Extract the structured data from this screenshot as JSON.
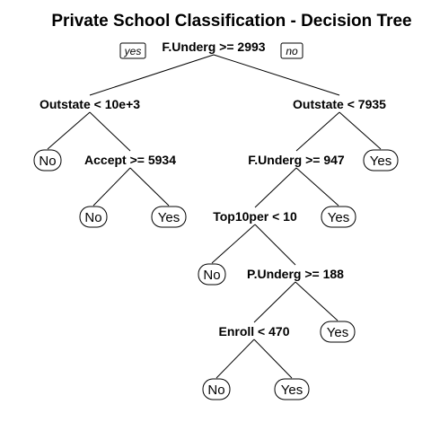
{
  "title": "Private School Classification - Decision Tree",
  "branch_labels": {
    "left": "yes",
    "right": "no"
  },
  "nodes": [
    {
      "id": "n1",
      "type": "split",
      "label": "F.Underg >= 2993"
    },
    {
      "id": "n2",
      "type": "split",
      "label": "Outstate < 10e+3"
    },
    {
      "id": "n3",
      "type": "split",
      "label": "Outstate < 7935"
    },
    {
      "id": "n4",
      "type": "leaf",
      "label": "No"
    },
    {
      "id": "n5",
      "type": "split",
      "label": "Accept >= 5934"
    },
    {
      "id": "n6",
      "type": "split",
      "label": "F.Underg >= 947"
    },
    {
      "id": "n7",
      "type": "leaf",
      "label": "Yes"
    },
    {
      "id": "n8",
      "type": "leaf",
      "label": "No"
    },
    {
      "id": "n9",
      "type": "leaf",
      "label": "Yes"
    },
    {
      "id": "n10",
      "type": "split",
      "label": "Top10per < 10"
    },
    {
      "id": "n11",
      "type": "leaf",
      "label": "Yes"
    },
    {
      "id": "n12",
      "type": "leaf",
      "label": "No"
    },
    {
      "id": "n13",
      "type": "split",
      "label": "P.Underg >= 188"
    },
    {
      "id": "n14",
      "type": "split",
      "label": "Enroll < 470"
    },
    {
      "id": "n15",
      "type": "leaf",
      "label": "Yes"
    },
    {
      "id": "n16",
      "type": "leaf",
      "label": "No"
    },
    {
      "id": "n17",
      "type": "leaf",
      "label": "Yes"
    }
  ],
  "edges": [
    [
      "n1",
      "n2"
    ],
    [
      "n1",
      "n3"
    ],
    [
      "n2",
      "n4"
    ],
    [
      "n2",
      "n5"
    ],
    [
      "n3",
      "n6"
    ],
    [
      "n3",
      "n7"
    ],
    [
      "n5",
      "n8"
    ],
    [
      "n5",
      "n9"
    ],
    [
      "n6",
      "n10"
    ],
    [
      "n6",
      "n11"
    ],
    [
      "n10",
      "n12"
    ],
    [
      "n10",
      "n13"
    ],
    [
      "n13",
      "n14"
    ],
    [
      "n13",
      "n15"
    ],
    [
      "n14",
      "n16"
    ],
    [
      "n14",
      "n17"
    ]
  ]
}
